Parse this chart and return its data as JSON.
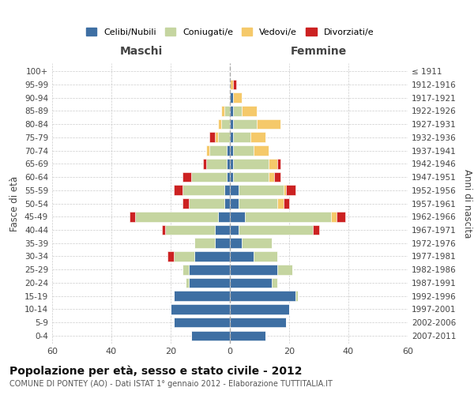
{
  "age_groups": [
    "0-4",
    "5-9",
    "10-14",
    "15-19",
    "20-24",
    "25-29",
    "30-34",
    "35-39",
    "40-44",
    "45-49",
    "50-54",
    "55-59",
    "60-64",
    "65-69",
    "70-74",
    "75-79",
    "80-84",
    "85-89",
    "90-94",
    "95-99",
    "100+"
  ],
  "birth_years": [
    "2007-2011",
    "2002-2006",
    "1997-2001",
    "1992-1996",
    "1987-1991",
    "1982-1986",
    "1977-1981",
    "1972-1976",
    "1967-1971",
    "1962-1966",
    "1957-1961",
    "1952-1956",
    "1947-1951",
    "1942-1946",
    "1937-1941",
    "1932-1936",
    "1927-1931",
    "1922-1926",
    "1917-1921",
    "1912-1916",
    "≤ 1911"
  ],
  "colors": {
    "celibi": "#3E6FA3",
    "coniugati": "#C5D5A0",
    "vedovi": "#F5C96A",
    "divorziati": "#CC2222"
  },
  "male": {
    "celibi": [
      13,
      19,
      20,
      19,
      14,
      14,
      12,
      5,
      5,
      4,
      2,
      2,
      1,
      1,
      1,
      0,
      0,
      0,
      0,
      0,
      0
    ],
    "coniugati": [
      0,
      0,
      0,
      0,
      1,
      2,
      7,
      7,
      17,
      28,
      12,
      14,
      12,
      7,
      6,
      4,
      3,
      2,
      0,
      0,
      0
    ],
    "vedovi": [
      0,
      0,
      0,
      0,
      0,
      0,
      0,
      0,
      0,
      0,
      0,
      0,
      0,
      0,
      1,
      1,
      1,
      1,
      0,
      0,
      0
    ],
    "divorziati": [
      0,
      0,
      0,
      0,
      0,
      0,
      2,
      0,
      1,
      2,
      2,
      3,
      3,
      1,
      0,
      2,
      0,
      0,
      0,
      0,
      0
    ]
  },
  "female": {
    "celibi": [
      12,
      19,
      20,
      22,
      14,
      16,
      8,
      4,
      3,
      5,
      3,
      3,
      1,
      1,
      1,
      1,
      1,
      1,
      1,
      0,
      0
    ],
    "coniugati": [
      0,
      0,
      0,
      1,
      2,
      5,
      8,
      10,
      25,
      29,
      13,
      15,
      12,
      12,
      7,
      6,
      8,
      3,
      0,
      0,
      0
    ],
    "vedovi": [
      0,
      0,
      0,
      0,
      0,
      0,
      0,
      0,
      0,
      2,
      2,
      1,
      2,
      3,
      5,
      5,
      8,
      5,
      3,
      1,
      0
    ],
    "divorziati": [
      0,
      0,
      0,
      0,
      0,
      0,
      0,
      0,
      2,
      3,
      2,
      3,
      2,
      1,
      0,
      0,
      0,
      0,
      0,
      1,
      0
    ]
  },
  "xlim": 60,
  "xlabel_left": "Maschi",
  "xlabel_right": "Femmine",
  "ylabel_left": "Fasce di età",
  "ylabel_right": "Anni di nascita",
  "title": "Popolazione per età, sesso e stato civile - 2012",
  "subtitle": "COMUNE DI PONTEY (AO) - Dati ISTAT 1° gennaio 2012 - Elaborazione TUTTITALIA.IT",
  "legend_labels": [
    "Celibi/Nubili",
    "Coniugati/e",
    "Vedovi/e",
    "Divorziati/e"
  ],
  "bg_color": "#ffffff",
  "bar_height": 0.75
}
